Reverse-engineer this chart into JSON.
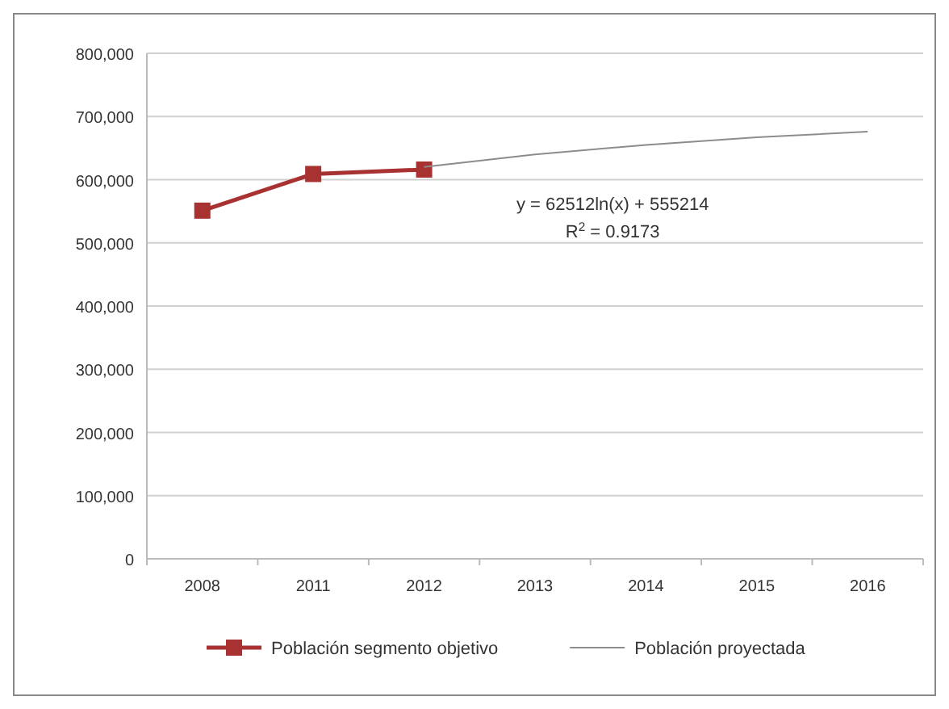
{
  "chart_data": {
    "type": "line",
    "categories": [
      "2008",
      "2011",
      "2012",
      "2013",
      "2014",
      "2015",
      "2016"
    ],
    "series": [
      {
        "name": "Población segmento objetivo",
        "color": "#a83232",
        "values": [
          551000,
          609000,
          616000,
          null,
          null,
          null,
          null
        ],
        "marker": "square"
      },
      {
        "name": "Población proyectada",
        "color": "#8c8c8c",
        "values": [
          null,
          null,
          620000,
          640000,
          655000,
          667000,
          676000
        ],
        "marker": "none"
      }
    ],
    "ylim": [
      0,
      800000
    ],
    "yticks": [
      {
        "value": 0,
        "label": "0"
      },
      {
        "value": 100000,
        "label": "100,000"
      },
      {
        "value": 200000,
        "label": "200,000"
      },
      {
        "value": 300000,
        "label": "300,000"
      },
      {
        "value": 400000,
        "label": "400,000"
      },
      {
        "value": 500000,
        "label": "500,000"
      },
      {
        "value": 600000,
        "label": "600,000"
      },
      {
        "value": 700000,
        "label": "700,000"
      },
      {
        "value": 800000,
        "label": "800,000"
      }
    ],
    "grid": "y",
    "legend": "bottom",
    "annotations": [
      "y = 62512ln(x) + 555214",
      "R$^{2}$ = 0.9173"
    ]
  }
}
